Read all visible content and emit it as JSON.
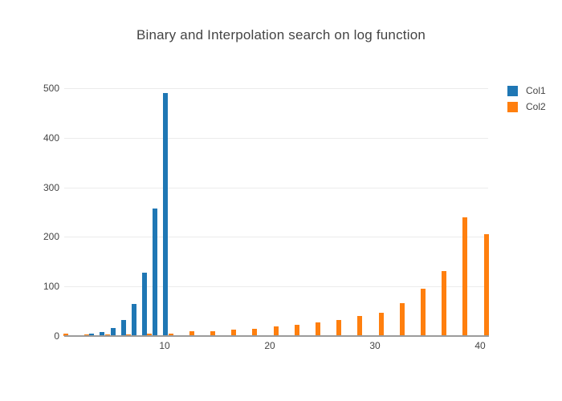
{
  "title": "Binary and Interpolation search on log function",
  "legend": {
    "items": [
      {
        "label": "Col1",
        "color": "#1f77b4"
      },
      {
        "label": "Col2",
        "color": "#ff7f0e"
      }
    ]
  },
  "chart_data": {
    "type": "bar",
    "title": "Binary and Interpolation search on log function",
    "xlabel": "",
    "ylabel": "",
    "x_ticks": [
      10,
      20,
      30,
      40
    ],
    "y_ticks": [
      0,
      100,
      200,
      300,
      400,
      500
    ],
    "x_range": [
      -0.6,
      40.9
    ],
    "y_range": [
      0,
      527
    ],
    "grid": "horizontal-only",
    "legend_position": "top-right",
    "background": "#ffffff",
    "gridline_color": "#ebebeb",
    "axis_line_color": "#9b9b9b",
    "text_color": "#444444",
    "series": [
      {
        "name": "Col1",
        "color": "#1f77b4",
        "points": [
          [
            1,
            2
          ],
          [
            2,
            2
          ],
          [
            3,
            5
          ],
          [
            4,
            8
          ],
          [
            5,
            16
          ],
          [
            6,
            32
          ],
          [
            7,
            64
          ],
          [
            8,
            128
          ],
          [
            9,
            257
          ],
          [
            10,
            490
          ],
          [
            11,
            2
          ]
        ]
      },
      {
        "name": "Col2",
        "color": "#ff7f0e",
        "points": [
          [
            0,
            5
          ],
          [
            2,
            4
          ],
          [
            4,
            4
          ],
          [
            6,
            4
          ],
          [
            8,
            5
          ],
          [
            10,
            5
          ],
          [
            12,
            10
          ],
          [
            14,
            10
          ],
          [
            16,
            13
          ],
          [
            18,
            15
          ],
          [
            20,
            20
          ],
          [
            22,
            23
          ],
          [
            24,
            27
          ],
          [
            26,
            33
          ],
          [
            28,
            40
          ],
          [
            30,
            47
          ],
          [
            32,
            67
          ],
          [
            34,
            96
          ],
          [
            36,
            131
          ],
          [
            38,
            240
          ],
          [
            40,
            205
          ]
        ]
      }
    ]
  }
}
